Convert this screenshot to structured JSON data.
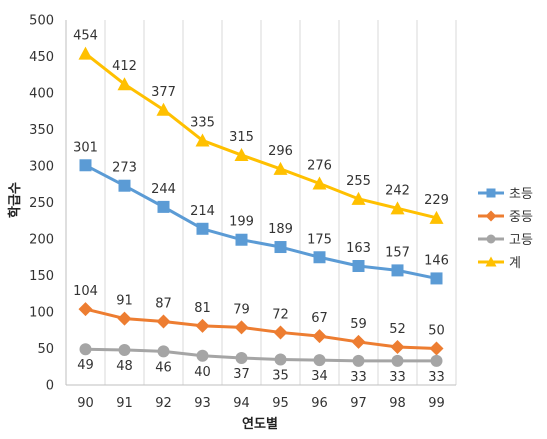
{
  "chart_data": {
    "type": "line",
    "xlabel": "연도별",
    "ylabel": "학급수",
    "categories": [
      "90",
      "91",
      "92",
      "93",
      "94",
      "95",
      "96",
      "97",
      "98",
      "99"
    ],
    "ylim": [
      0,
      500
    ],
    "yticks": [
      0,
      50,
      100,
      150,
      200,
      250,
      300,
      350,
      400,
      450,
      500
    ],
    "grid": "vertical",
    "legend_position": "right",
    "series": [
      {
        "name": "초등",
        "color": "#5B9BD5",
        "marker": "square",
        "label_pos": "above",
        "values": [
          301,
          273,
          244,
          214,
          199,
          189,
          175,
          163,
          157,
          146
        ]
      },
      {
        "name": "중등",
        "color": "#ED7D31",
        "marker": "diamond",
        "label_pos": "above",
        "values": [
          104,
          91,
          87,
          81,
          79,
          72,
          67,
          59,
          52,
          50
        ]
      },
      {
        "name": "고등",
        "color": "#A5A5A5",
        "marker": "circle",
        "label_pos": "below",
        "values": [
          49,
          48,
          46,
          40,
          37,
          35,
          34,
          33,
          33,
          33
        ]
      },
      {
        "name": "계",
        "color": "#FFC000",
        "marker": "triangle",
        "label_pos": "above",
        "values": [
          454,
          412,
          377,
          335,
          315,
          296,
          276,
          255,
          242,
          229
        ]
      }
    ]
  }
}
